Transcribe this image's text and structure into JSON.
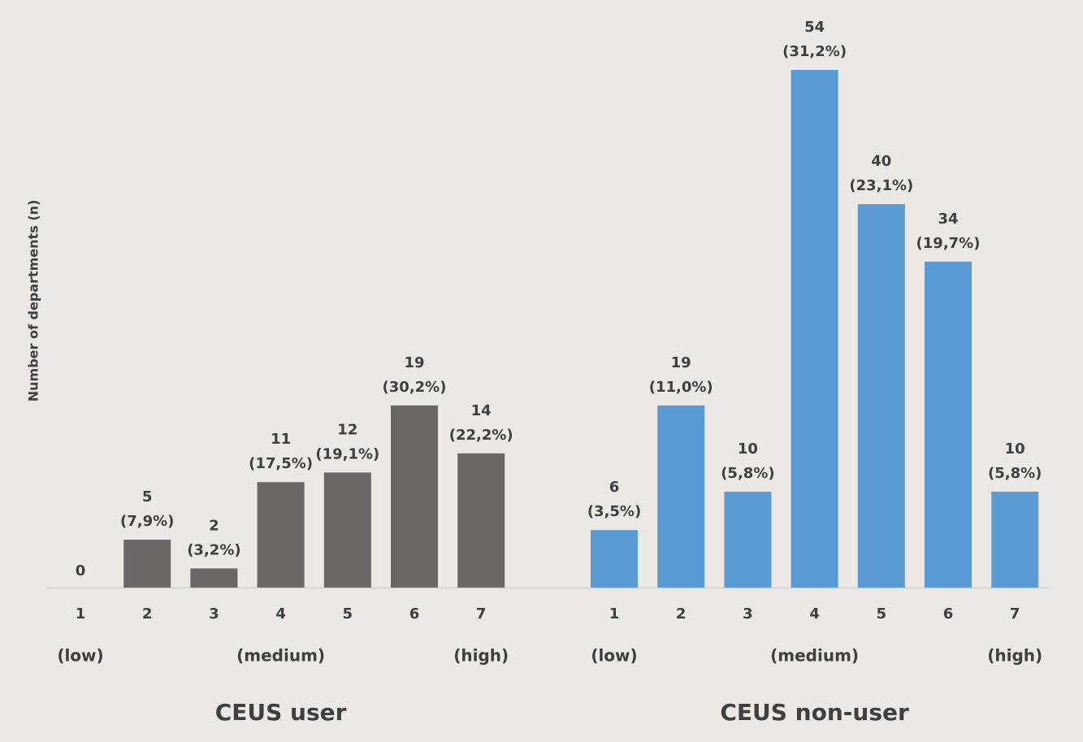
{
  "chart_data": [
    {
      "type": "bar",
      "title": "CEUS user",
      "ylabel": "Number of departments (n)",
      "color": "#6b6767",
      "categories": [
        "1",
        "2",
        "3",
        "4",
        "5",
        "6",
        "7"
      ],
      "scale_labels": [
        "(low)",
        null,
        null,
        "(medium)",
        null,
        null,
        "(high)"
      ],
      "values": [
        0,
        5,
        2,
        11,
        12,
        19,
        14
      ],
      "percent_labels": [
        null,
        "(7,9%)",
        "(3,2%)",
        "(17,5%)",
        "(19,1%)",
        "(30,2%)",
        "(22,2%)"
      ],
      "ylim": [
        0,
        54
      ]
    },
    {
      "type": "bar",
      "title": "CEUS non-user",
      "color": "#5b9bd5",
      "categories": [
        "1",
        "2",
        "3",
        "4",
        "5",
        "6",
        "7"
      ],
      "scale_labels": [
        "(low)",
        null,
        null,
        "(medium)",
        null,
        null,
        "(high)"
      ],
      "values": [
        6,
        19,
        10,
        54,
        40,
        34,
        10
      ],
      "percent_labels": [
        "(3,5%)",
        "(11,0%)",
        "(5,8%)",
        "(31,2%)",
        "(23,1%)",
        "(19,7%)",
        "(5,8%)"
      ],
      "ylim": [
        0,
        54
      ]
    }
  ]
}
